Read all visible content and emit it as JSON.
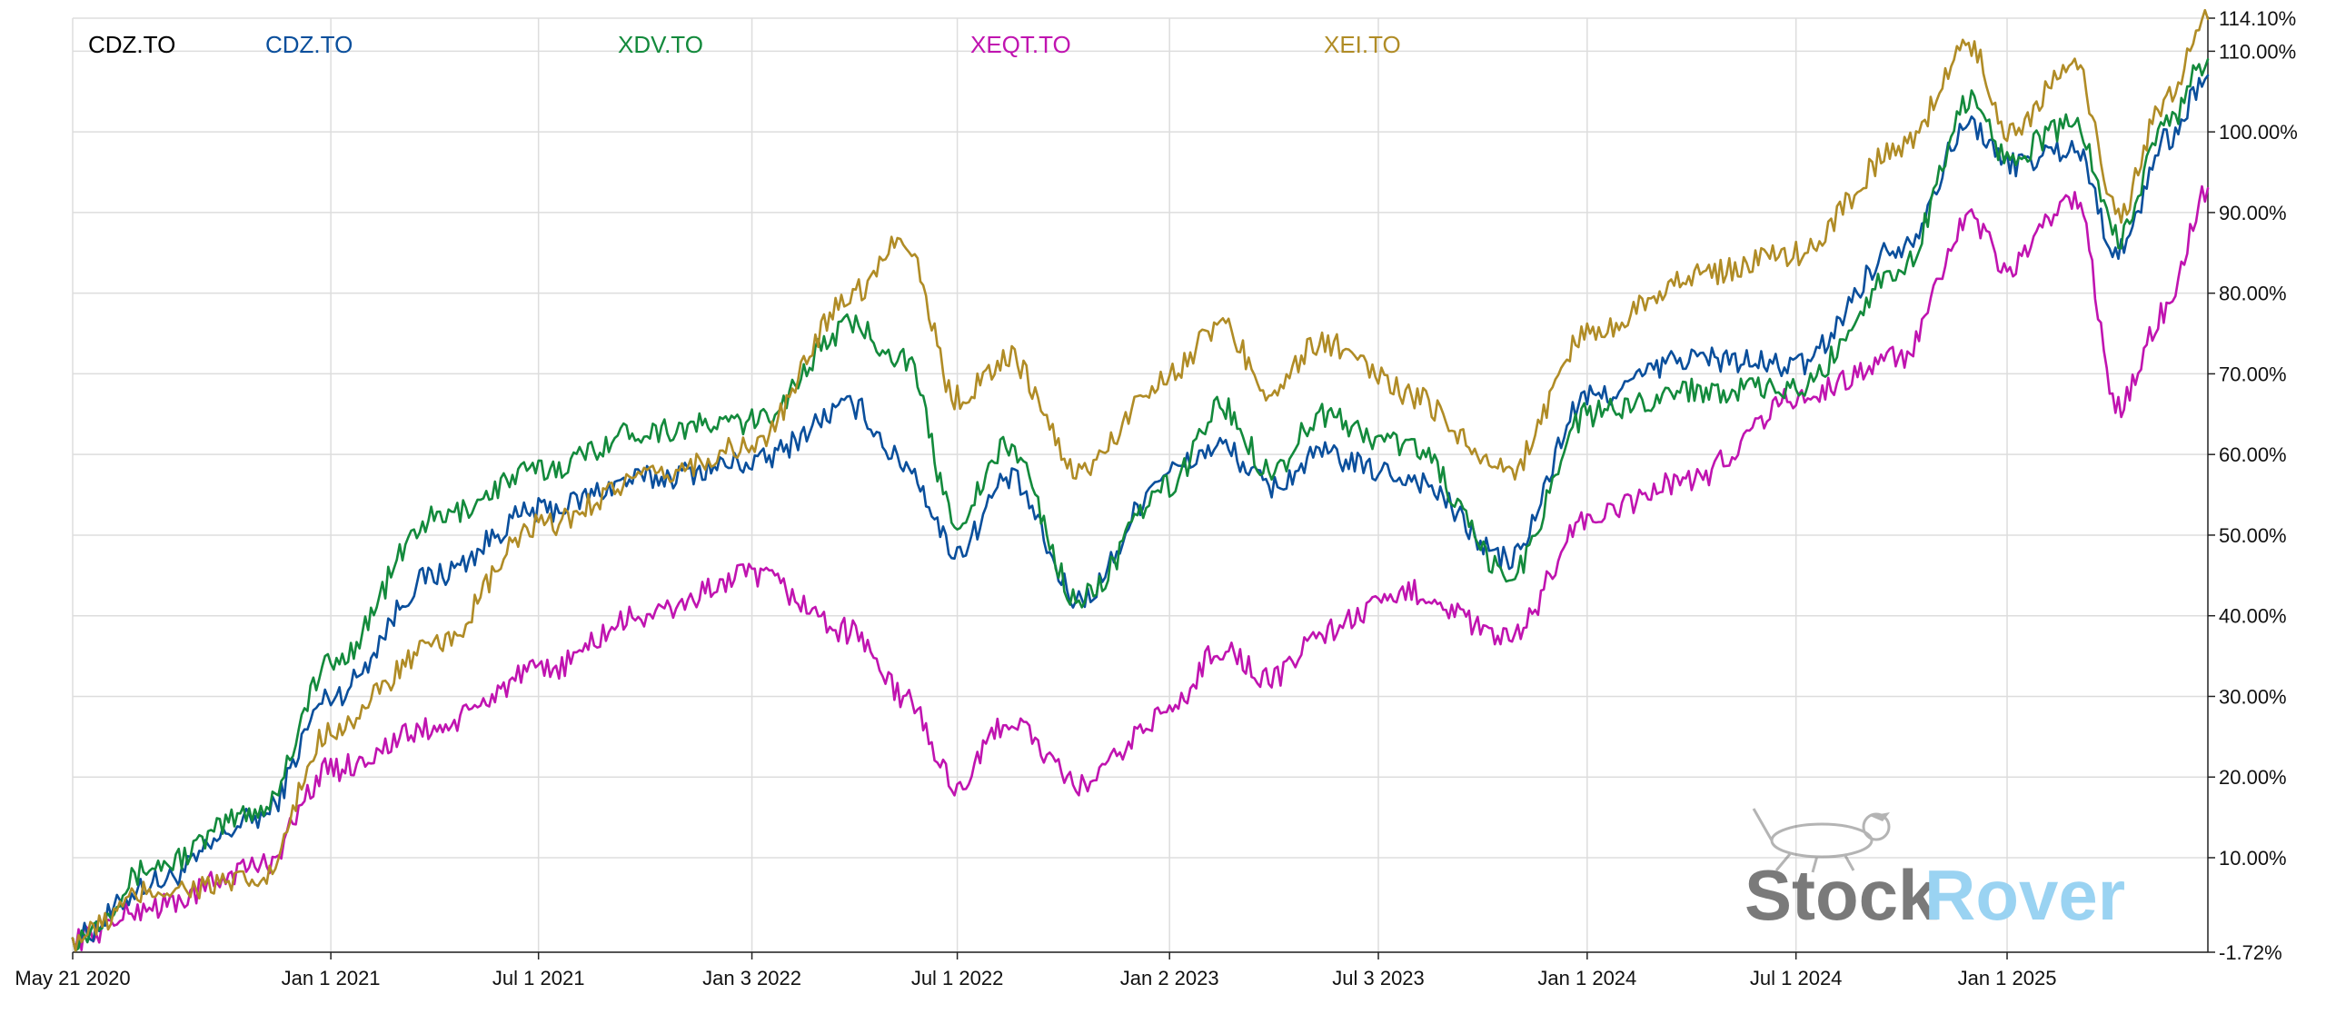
{
  "chart_data": {
    "type": "line",
    "legend_placement": "top",
    "legend_title": "CDZ.TO",
    "grid": true,
    "x_tick_labels": [
      "May 21 2020",
      "Jan 1 2021",
      "Jul 1 2021",
      "Jan 3 2022",
      "Jul 1 2022",
      "Jan 2 2023",
      "Jul 3 2023",
      "Jan 1 2024",
      "Jul 1 2024",
      "Jan 1 2025"
    ],
    "y_tick_labels": [
      "114.10%",
      "110.00%",
      "100.00%",
      "90.00%",
      "80.00%",
      "70.00%",
      "60.00%",
      "50.00%",
      "40.00%",
      "30.00%",
      "20.00%",
      "10.00%",
      "-1.72%"
    ],
    "ylim": [
      -1.72,
      114.1
    ],
    "x": [
      "2020-05-21",
      "2020-08-01",
      "2020-11-01",
      "2021-01-01",
      "2021-04-01",
      "2021-07-01",
      "2021-10-01",
      "2022-01-03",
      "2022-04-01",
      "2022-05-15",
      "2022-07-01",
      "2022-08-15",
      "2022-10-15",
      "2023-01-02",
      "2023-02-15",
      "2023-04-01",
      "2023-05-15",
      "2023-07-03",
      "2023-08-01",
      "2023-10-25",
      "2024-01-01",
      "2024-04-01",
      "2024-07-01",
      "2024-10-01",
      "2024-12-01",
      "2025-01-01",
      "2025-03-01",
      "2025-04-08",
      "2025-05-20",
      "2025-06-25"
    ],
    "series": [
      {
        "name": "CDZ.TO",
        "color": "#0a4f9c",
        "values": [
          0,
          7,
          15,
          30,
          45,
          53,
          57,
          59,
          66,
          59,
          48,
          57,
          42,
          58,
          61,
          56,
          60,
          58,
          57,
          47,
          67,
          72,
          71,
          86,
          101,
          96,
          98,
          85,
          99,
          107
        ]
      },
      {
        "name": "XDV.TO",
        "color": "#138a3c",
        "values": [
          0,
          9,
          16,
          34,
          52,
          58,
          63,
          64,
          76,
          72,
          52,
          61,
          42,
          56,
          66,
          58,
          65,
          62,
          61,
          45,
          65,
          68,
          68,
          83,
          104,
          97,
          101,
          87,
          101,
          109
        ]
      },
      {
        "name": "XEQT.TO",
        "color": "#c014b0",
        "values": [
          0,
          4,
          9,
          21,
          26,
          33,
          40,
          45,
          38,
          30,
          19,
          27,
          19,
          28,
          36,
          32,
          38,
          41,
          43,
          37,
          52,
          57,
          67,
          72,
          89,
          83,
          92,
          66,
          78,
          93
        ]
      },
      {
        "name": "XEI.TO",
        "color": "#b08c26",
        "values": [
          0,
          6,
          7,
          26,
          36,
          51,
          57,
          61,
          80,
          87,
          67,
          72,
          58,
          70,
          76,
          68,
          74,
          70,
          67,
          58,
          75,
          82,
          85,
          98,
          111,
          100,
          108,
          90,
          104,
          114
        ]
      }
    ],
    "watermark": {
      "part1": "Stock",
      "part2": "Rover"
    }
  }
}
